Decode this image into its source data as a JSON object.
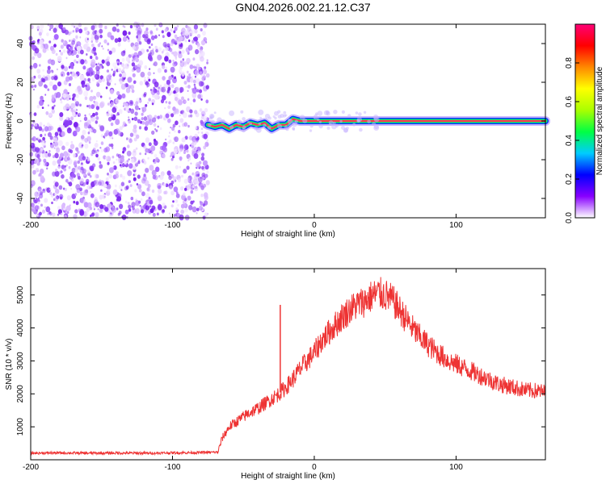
{
  "title": "GN04.2026.002.21.12.C37",
  "chart_data": [
    {
      "type": "heatmap",
      "xlabel": "Height of straight line (km)",
      "ylabel": "Frequency (Hz)",
      "xlim": [
        -200,
        163
      ],
      "ylim": [
        -50,
        50
      ],
      "x_ticks": [
        -200,
        -100,
        0,
        100
      ],
      "x_tick_labels": [
        "-200",
        "-100",
        "0",
        "100"
      ],
      "y_ticks": [
        -40,
        -20,
        0,
        20,
        40
      ],
      "y_tick_labels": [
        "-40",
        "-20",
        "0",
        "20",
        "40"
      ],
      "noise_region_x": [
        -200,
        -75
      ],
      "signal_line": {
        "x": [
          -75,
          -70,
          -65,
          -60,
          -55,
          -50,
          -45,
          -40,
          -35,
          -30,
          -25,
          -20,
          -15,
          -10,
          -5,
          0,
          5,
          163
        ],
        "y": [
          -2,
          -3,
          -2,
          -4,
          -2,
          -3,
          -1,
          -2,
          -1,
          -4,
          -2,
          -2,
          1,
          0,
          0,
          0,
          0,
          0
        ]
      },
      "colorbar": {
        "label": "Normalized spectral amplitude",
        "range": [
          0.0,
          1.0
        ],
        "ticks": [
          0.0,
          0.2,
          0.4,
          0.6,
          0.8
        ],
        "tick_labels": [
          "0.0",
          "0.2",
          "0.4",
          "0.6",
          "0.8"
        ],
        "colors": [
          "#ffffff",
          "#8800ff",
          "#0000ff",
          "#00ccff",
          "#00ff44",
          "#aaff00",
          "#ffff00",
          "#ff8800",
          "#ff0000",
          "#ff0077"
        ]
      }
    },
    {
      "type": "line",
      "xlabel": "Height of straight line (km)",
      "ylabel": "SNR (10 * v/v)",
      "xlim": [
        -200,
        163
      ],
      "ylim": [
        0,
        5800
      ],
      "x_ticks": [
        -200,
        -100,
        0,
        100
      ],
      "x_tick_labels": [
        "-200",
        "-100",
        "0",
        "100"
      ],
      "y_ticks": [
        1000,
        2000,
        3000,
        4000,
        5000
      ],
      "y_tick_labels": [
        "1000",
        "2000",
        "3000",
        "4000",
        "5000"
      ],
      "color": "#ee3333",
      "series": [
        {
          "x": [
            -200,
            -180,
            -160,
            -140,
            -120,
            -100,
            -80,
            -68,
            -65,
            -60,
            -55,
            -50,
            -45,
            -40,
            -35,
            -30,
            -25,
            -20,
            -15,
            -10,
            -5,
            0,
            5,
            10,
            15,
            20,
            25,
            30,
            35,
            40,
            45,
            50,
            55,
            60,
            65,
            70,
            75,
            80,
            85,
            90,
            95,
            100,
            105,
            110,
            115,
            120,
            125,
            130,
            135,
            140,
            145,
            150,
            155,
            163
          ],
          "y": [
            200,
            210,
            200,
            205,
            200,
            210,
            220,
            230,
            650,
            1000,
            1150,
            1300,
            1450,
            1550,
            1700,
            1850,
            2000,
            2200,
            2450,
            2750,
            3000,
            3250,
            3600,
            3850,
            4100,
            4350,
            4550,
            4700,
            4800,
            4950,
            5050,
            5000,
            4850,
            4550,
            4250,
            3950,
            3700,
            3500,
            3300,
            3150,
            3000,
            2900,
            2800,
            2700,
            2600,
            2500,
            2400,
            2300,
            2250,
            2200,
            2150,
            2100,
            2100,
            2050
          ]
        }
      ],
      "annotations": [
        {
          "x": -24,
          "y": 4700,
          "text": ""
        }
      ]
    }
  ]
}
